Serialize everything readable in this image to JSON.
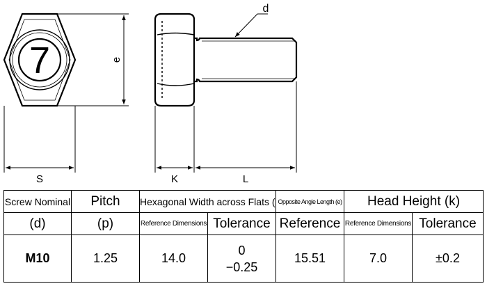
{
  "drawing": {
    "symbol": "7",
    "labels": {
      "d": "d",
      "e": "e",
      "s": "S",
      "k": "K",
      "l": "L"
    }
  },
  "table": {
    "headers": {
      "screw_nominal": "Screw Nominal",
      "screw_nominal_sub": "(d)",
      "pitch": "Pitch",
      "pitch_sub": "(p)",
      "width_across_flats": "Hexagonal Width across Flats (s)",
      "opposite_angle": "Opposite Angle Length (e)",
      "head_height": "Head Height (k)",
      "reference_dimensions": "Reference Dimensions",
      "tolerance": "Tolerance",
      "reference": "Reference",
      "reference_dimensions_2": "Reference Dimensions",
      "tolerance_2": "Tolerance"
    },
    "row": {
      "nominal": "M10",
      "pitch": "1.25",
      "s_ref": "14.0",
      "s_tol_upper": "0",
      "s_tol_lower": "−0.25",
      "e_ref": "15.51",
      "k_ref": "7.0",
      "k_tol": "±0.2"
    }
  }
}
